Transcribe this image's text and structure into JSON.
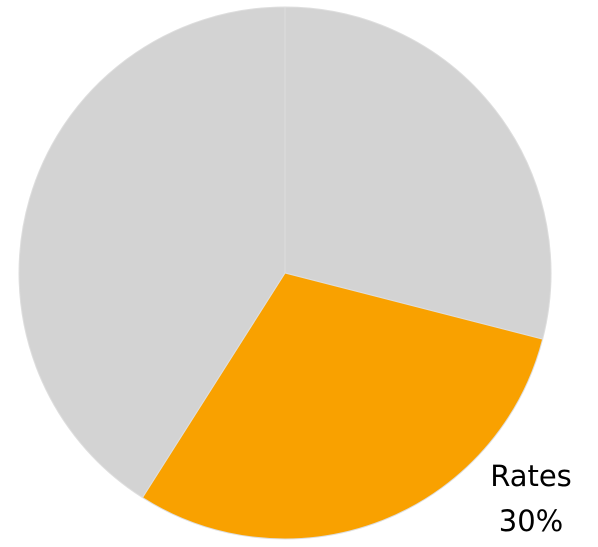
{
  "chart_data": {
    "type": "pie",
    "categories": [
      null,
      "Rates",
      null
    ],
    "values": [
      29,
      30,
      41
    ],
    "value_labels": [
      null,
      "30%",
      null
    ],
    "colors": [
      "#d3d3d3",
      "#f9a100",
      "#d3d3d3"
    ]
  }
}
